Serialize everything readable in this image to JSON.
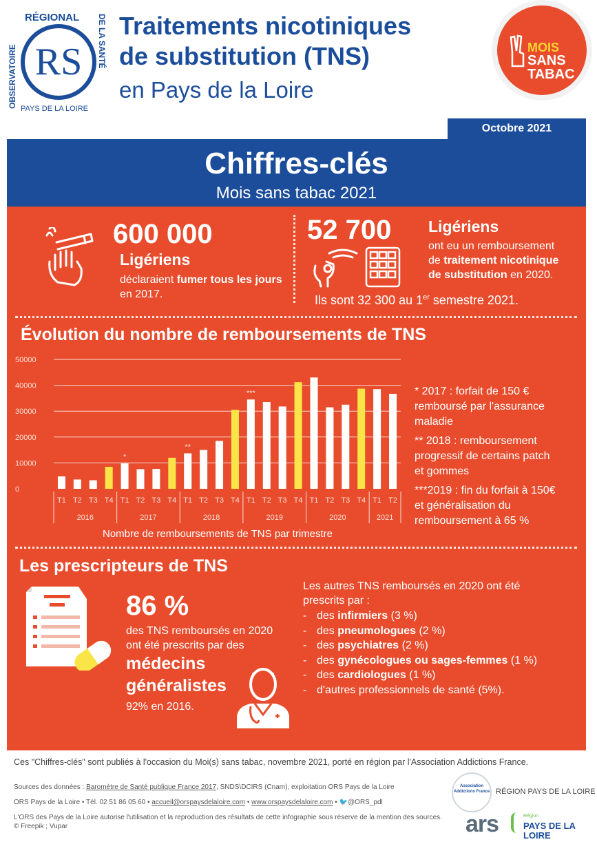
{
  "header": {
    "logo": {
      "arc_top": "RÉGIONAL",
      "arc_left": "OBSERVATOIRE",
      "arc_right": "DE LA SANTÉ",
      "bottom": "PAYS DE LA LOIRE",
      "mark": "RS"
    },
    "title_line1": "Traitements nicotiniques",
    "title_line2": "de substitution (TNS)",
    "title_line3": "en Pays de la Loire",
    "badge": {
      "line1": "MOIS",
      "line2": "SANS",
      "line3": "TABAC"
    },
    "date": "Octobre 2021"
  },
  "key_figures": {
    "title": "Chiffres-clés",
    "subtitle": "Mois sans tabac 2021",
    "left": {
      "number": "600 000",
      "label": "Ligériens",
      "text_pre": "déclaraient ",
      "text_bold": "fumer tous les jours",
      "text_post": "en 2017."
    },
    "right": {
      "number": "52 700",
      "label": "Ligériens",
      "line1": "ont eu un remboursement",
      "line2_pre": "de ",
      "line2_bold": "traitement nicotinique",
      "line3_bold": "de substitution",
      "line3_post": " en 2020.",
      "note_pre": "Ils sont 32 300 au 1",
      "note_sup": "er",
      "note_post": " semestre 2021."
    }
  },
  "evolution": {
    "title": "Évolution du nombre de remboursements de TNS"
  },
  "chart_data": {
    "type": "bar",
    "title": "Évolution du nombre de remboursements de TNS",
    "xlabel": "Nombre de remboursements de TNS par trimestre",
    "ylabel": "",
    "ylim": [
      0,
      50000
    ],
    "yticks": [
      "50000",
      "40000",
      "30000",
      "20000",
      "10000",
      "0"
    ],
    "categories": [
      "T1",
      "T2",
      "T3",
      "T4",
      "T1",
      "T2",
      "T3",
      "T4",
      "T1",
      "T2",
      "T3",
      "T4",
      "T1",
      "T2",
      "T3",
      "T4",
      "T1",
      "T2",
      "T3",
      "T4",
      "T1",
      "T2"
    ],
    "years": [
      "2016",
      "2017",
      "2018",
      "2019",
      "2020",
      "2021"
    ],
    "values": [
      4800,
      3600,
      3300,
      8500,
      9800,
      7600,
      7700,
      12000,
      13700,
      15000,
      18500,
      30500,
      34500,
      33500,
      31800,
      41200,
      43000,
      31500,
      32500,
      38700,
      38500,
      36700
    ],
    "highlight": [
      false,
      false,
      false,
      true,
      false,
      false,
      false,
      true,
      false,
      false,
      false,
      true,
      false,
      false,
      false,
      true,
      false,
      false,
      false,
      true,
      false,
      false
    ],
    "annotations": [
      {
        "index": 4,
        "label": "*"
      },
      {
        "index": 8,
        "label": "**"
      },
      {
        "index": 12,
        "label": "***"
      }
    ],
    "colors": {
      "default": "#ffffff",
      "highlight": "#f9e547"
    }
  },
  "notes": {
    "n1_line1": "* 2017 : forfait de 150 €",
    "n1_line2": "remboursé par l'assurance",
    "n1_line3": "maladie",
    "n2_line1": "** 2018 : remboursement",
    "n2_line2": "progressif de certains patch",
    "n2_line3": "et gommes",
    "n3_line1": "***2019 : fin du forfait à 150€",
    "n3_line2": "et généralisation du",
    "n3_line3": "remboursement à 65 %"
  },
  "prescribers": {
    "title": "Les prescripteurs de TNS",
    "percent": "86 %",
    "line1": "des TNS remboursés en 2020",
    "line2": "ont été prescrits par des",
    "big1": "médecins",
    "big2": "généralistes",
    "note": "92% en 2016.",
    "others_line1": "Les autres TNS remboursés en 2020 ont été",
    "others_line2": "prescrits par :",
    "list": [
      {
        "pre": "des ",
        "bold": "infirmiers",
        "post": " (3 %)"
      },
      {
        "pre": "des ",
        "bold": "pneumologues",
        "post": " (2 %)"
      },
      {
        "pre": "des ",
        "bold": "psychiatres",
        "post": " (2 %)"
      },
      {
        "pre": "des ",
        "bold": "gynécologues ou sages-femmes",
        "post": " (1 %)"
      },
      {
        "pre": "des ",
        "bold": "cardiologues",
        "post": " (1 %)"
      },
      {
        "pre": "d'autres professionnels de santé (5%).",
        "bold": "",
        "post": ""
      }
    ]
  },
  "footer": {
    "published": "Ces \"Chiffres-clés\" sont publiés à l'occasion du Moi(s) sans tabac, novembre 2021, porté en région par l'Association Addictions France.",
    "sources_pre": "Sources des données : ",
    "sources_link": "Baromètre de Santé publique France 2017",
    "sources_post": ", SNDS\\DCIRS (Cnam), exploitation ORS Pays de la Loire",
    "contact_pre": "ORS Pays de la Loire • Tél. 02 51 86 05 60 • ",
    "email": "accueil@orspaysdelaloire.com",
    "sep": " • ",
    "website": "www.orspaysdelaloire.com",
    "twitter": "@ORS_pdl",
    "legal1": "L'ORS des Pays de la Loire autorise l'utilisation et la reproduction des résultats de cette infographie sous réserve de la mention des sources.",
    "legal2": "© Freepik ; Vupar",
    "partner1": "Association Addictions France",
    "region": "RÉGION PAYS DE LA LOIRE",
    "ars": "ars",
    "pdl_small": "Région",
    "pdl": "PAYS DE LA LOIRE"
  }
}
